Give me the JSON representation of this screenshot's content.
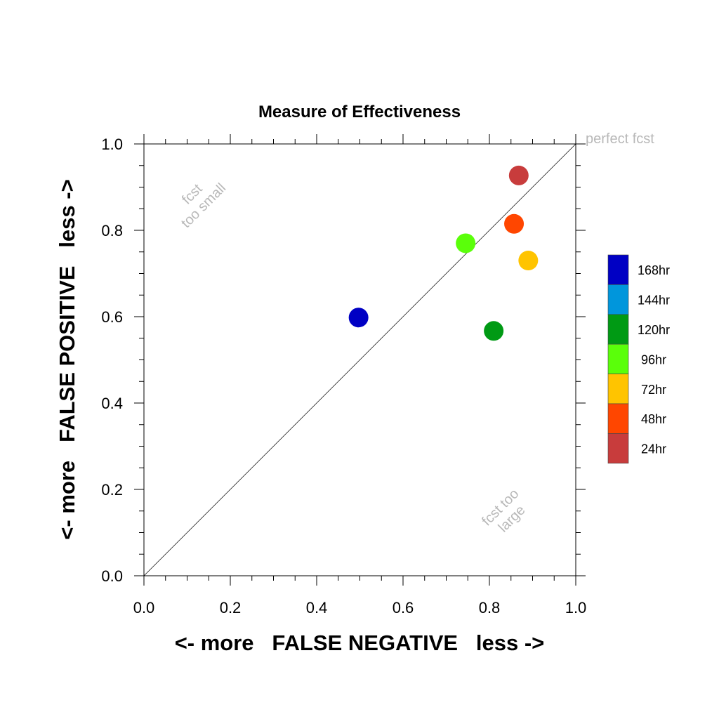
{
  "chart_data": {
    "type": "scatter",
    "title": "Measure of Effectiveness",
    "xlabel": "<- more   FALSE NEGATIVE   less ->",
    "ylabel": "<- more   FALSE POSITIVE   less ->",
    "xlim": [
      0,
      1
    ],
    "ylim": [
      0,
      1
    ],
    "xticks": [
      "0.0",
      "0.2",
      "0.4",
      "0.6",
      "0.8",
      "1.0"
    ],
    "yticks": [
      "0.0",
      "0.2",
      "0.4",
      "0.6",
      "0.8",
      "1.0"
    ],
    "grid": false,
    "diagonal_line": true,
    "annotations": {
      "perfect": "perfect fcst",
      "small": [
        "fcst",
        "too small"
      ],
      "large": [
        "fcst too",
        "large"
      ]
    },
    "legend_position": "right",
    "legend": [
      {
        "label": "168hr",
        "color": "#0000c4"
      },
      {
        "label": "144hr",
        "color": "#0096dc"
      },
      {
        "label": "120hr",
        "color": "#009a14"
      },
      {
        "label": "96hr",
        "color": "#5aff0a"
      },
      {
        "label": "72hr",
        "color": "#ffc400"
      },
      {
        "label": "48hr",
        "color": "#ff4600"
      },
      {
        "label": "24hr",
        "color": "#c83c3c"
      }
    ],
    "points": [
      {
        "label": "168hr",
        "x": 0.497,
        "y": 0.598,
        "color": "#0000c4"
      },
      {
        "label": "120hr",
        "x": 0.81,
        "y": 0.567,
        "color": "#009a14"
      },
      {
        "label": "96hr",
        "x": 0.745,
        "y": 0.77,
        "color": "#5aff0a"
      },
      {
        "label": "72hr",
        "x": 0.89,
        "y": 0.73,
        "color": "#ffc400"
      },
      {
        "label": "48hr",
        "x": 0.857,
        "y": 0.815,
        "color": "#ff4600"
      },
      {
        "label": "24hr",
        "x": 0.868,
        "y": 0.927,
        "color": "#c83c3c"
      }
    ]
  }
}
